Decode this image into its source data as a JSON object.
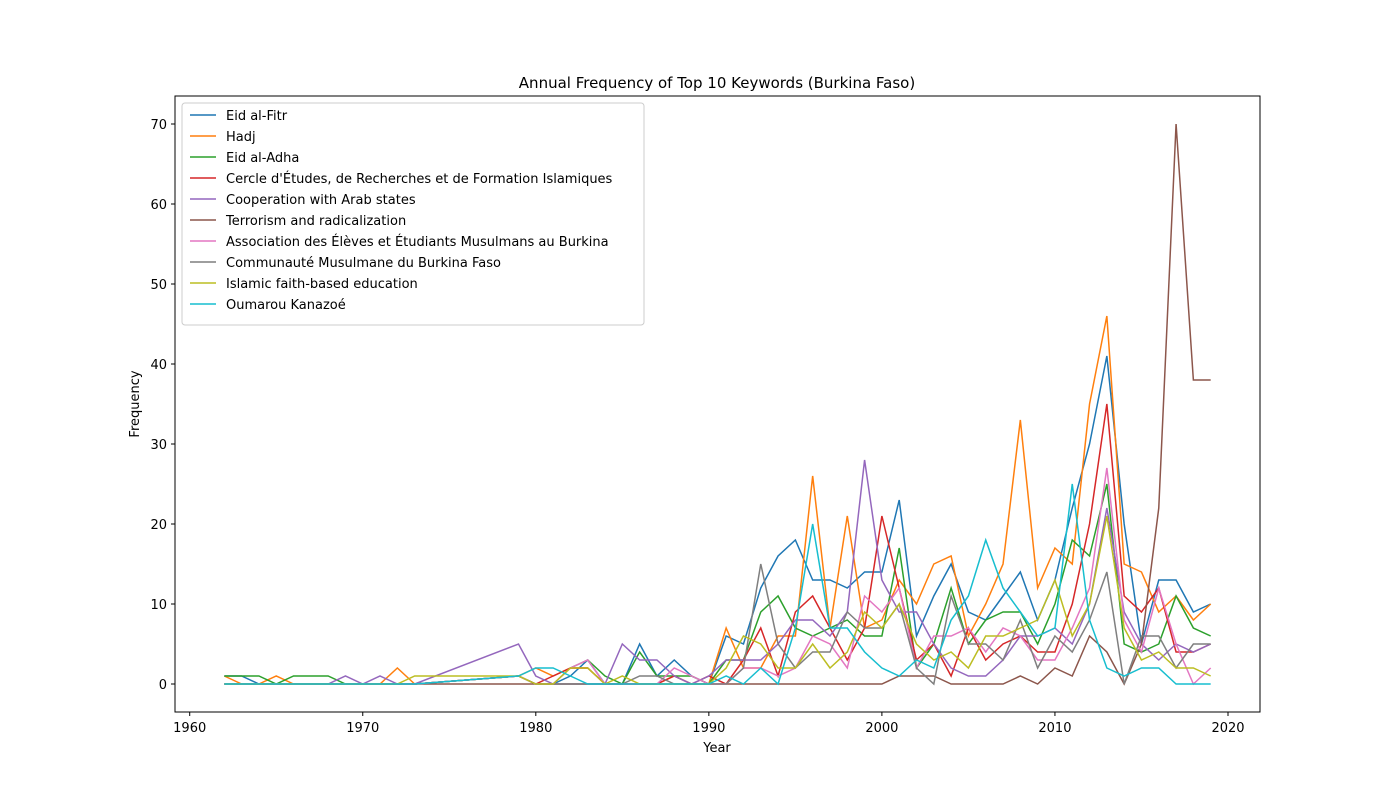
{
  "chart_data": {
    "type": "line",
    "title": "Annual Frequency of Top 10 Keywords (Burkina Faso)",
    "x_label": "Year",
    "y_label": "Frequency",
    "x": [
      1962,
      1963,
      1964,
      1965,
      1966,
      1967,
      1968,
      1969,
      1970,
      1971,
      1972,
      1973,
      1979,
      1980,
      1981,
      1982,
      1983,
      1984,
      1985,
      1986,
      1987,
      1988,
      1989,
      1990,
      1991,
      1992,
      1993,
      1994,
      1995,
      1996,
      1997,
      1998,
      1999,
      2000,
      2001,
      2002,
      2003,
      2004,
      2005,
      2006,
      2007,
      2008,
      2009,
      2010,
      2011,
      2012,
      2013,
      2014,
      2015,
      2016,
      2017,
      2018,
      2019
    ],
    "xlim": [
      1959.15,
      2021.85
    ],
    "xticks": [
      1960,
      1970,
      1980,
      1990,
      2000,
      2010,
      2020
    ],
    "ylim": [
      -3.5,
      73.5
    ],
    "yticks": [
      0,
      10,
      20,
      30,
      40,
      50,
      60,
      70
    ],
    "legend": "upper left",
    "series": [
      {
        "name": "Eid al-Fitr",
        "color": "#1f77b4",
        "values": [
          1,
          1,
          0,
          0,
          0,
          0,
          0,
          0,
          0,
          0,
          0,
          0,
          1,
          0,
          0,
          1,
          3,
          0,
          0,
          5,
          1,
          3,
          1,
          0,
          6,
          5,
          12,
          16,
          18,
          13,
          13,
          12,
          14,
          14,
          23,
          6,
          11,
          15,
          9,
          8,
          11,
          14,
          8,
          13,
          22,
          30,
          41,
          20,
          5,
          13,
          13,
          9,
          10
        ]
      },
      {
        "name": "Hadj",
        "color": "#ff7f0e",
        "values": [
          1,
          0,
          0,
          1,
          0,
          0,
          0,
          0,
          0,
          0,
          2,
          0,
          1,
          2,
          1,
          2,
          2,
          0,
          0,
          0,
          0,
          1,
          0,
          0,
          7,
          2,
          2,
          6,
          6,
          26,
          7,
          21,
          7,
          8,
          13,
          10,
          15,
          16,
          6,
          10,
          15,
          33,
          12,
          17,
          15,
          35,
          46,
          15,
          14,
          9,
          11,
          8,
          10
        ]
      },
      {
        "name": "Eid al-Adha",
        "color": "#2ca02c",
        "values": [
          1,
          1,
          1,
          0,
          1,
          1,
          1,
          0,
          0,
          0,
          0,
          0,
          1,
          0,
          0,
          2,
          3,
          1,
          0,
          4,
          1,
          1,
          1,
          0,
          3,
          3,
          9,
          11,
          7,
          6,
          7,
          8,
          6,
          6,
          17,
          2,
          5,
          12,
          5,
          8,
          9,
          9,
          5,
          10,
          18,
          16,
          25,
          5,
          4,
          5,
          11,
          7,
          6
        ]
      },
      {
        "name": "Cercle d'Études, de Recherches et de Formation Islamiques",
        "color": "#d62728",
        "values": [
          0,
          0,
          0,
          0,
          0,
          0,
          0,
          0,
          0,
          0,
          0,
          0,
          1,
          0,
          1,
          2,
          2,
          0,
          0,
          0,
          0,
          1,
          0,
          1,
          0,
          3,
          7,
          1,
          9,
          11,
          7,
          3,
          7,
          21,
          12,
          3,
          5,
          1,
          7,
          3,
          5,
          6,
          4,
          4,
          10,
          20,
          35,
          11,
          9,
          12,
          4,
          4,
          5
        ]
      },
      {
        "name": "Cooperation with Arab states",
        "color": "#9467bd",
        "values": [
          0,
          0,
          0,
          0,
          0,
          0,
          0,
          1,
          0,
          1,
          0,
          0,
          5,
          1,
          0,
          0,
          0,
          0,
          5,
          3,
          3,
          1,
          0,
          1,
          3,
          3,
          3,
          5,
          8,
          8,
          6,
          9,
          28,
          13,
          9,
          9,
          5,
          2,
          1,
          1,
          3,
          6,
          6,
          7,
          5,
          10,
          22,
          9,
          5,
          3,
          5,
          4,
          5
        ]
      },
      {
        "name": "Terrorism and radicalization",
        "color": "#8c564b",
        "values": [
          0,
          0,
          0,
          0,
          0,
          0,
          0,
          0,
          0,
          0,
          0,
          0,
          0,
          0,
          0,
          0,
          0,
          0,
          0,
          0,
          0,
          0,
          0,
          0,
          0,
          0,
          0,
          0,
          0,
          0,
          0,
          0,
          0,
          0,
          1,
          1,
          1,
          0,
          0,
          0,
          0,
          1,
          0,
          2,
          1,
          6,
          4,
          0,
          5,
          22,
          70,
          38,
          38
        ]
      },
      {
        "name": "Association des Élèves et Étudiants Musulmans au Burkina",
        "color": "#e377c2",
        "values": [
          0,
          0,
          0,
          0,
          0,
          0,
          0,
          0,
          0,
          0,
          0,
          0,
          1,
          0,
          0,
          2,
          3,
          0,
          0,
          0,
          0,
          2,
          1,
          0,
          0,
          2,
          2,
          1,
          2,
          6,
          5,
          2,
          11,
          9,
          12,
          2,
          6,
          6,
          7,
          4,
          7,
          6,
          3,
          3,
          7,
          12,
          27,
          8,
          4,
          12,
          5,
          0,
          2
        ]
      },
      {
        "name": "Communauté Musulmane du Burkina Faso",
        "color": "#7f7f7f",
        "values": [
          0,
          0,
          0,
          0,
          0,
          0,
          0,
          0,
          0,
          0,
          0,
          0,
          1,
          0,
          0,
          0,
          0,
          0,
          0,
          1,
          1,
          0,
          0,
          0,
          0,
          2,
          15,
          5,
          2,
          4,
          4,
          9,
          7,
          7,
          10,
          2,
          0,
          11,
          5,
          5,
          3,
          8,
          2,
          6,
          4,
          8,
          14,
          0,
          6,
          6,
          2,
          5,
          5
        ]
      },
      {
        "name": "Islamic faith-based education",
        "color": "#bcbd22",
        "values": [
          0,
          0,
          0,
          0,
          0,
          0,
          0,
          0,
          0,
          0,
          0,
          1,
          1,
          0,
          0,
          2,
          2,
          0,
          1,
          0,
          0,
          0,
          0,
          0,
          2,
          6,
          5,
          2,
          2,
          5,
          2,
          4,
          9,
          7,
          10,
          5,
          3,
          4,
          2,
          6,
          6,
          7,
          8,
          13,
          6,
          10,
          21,
          7,
          3,
          4,
          2,
          2,
          1
        ]
      },
      {
        "name": "Oumarou Kanazoé",
        "color": "#17becf",
        "values": [
          0,
          0,
          0,
          0,
          0,
          0,
          0,
          0,
          0,
          0,
          0,
          0,
          1,
          2,
          2,
          1,
          0,
          0,
          0,
          0,
          0,
          0,
          0,
          0,
          1,
          0,
          2,
          0,
          7,
          20,
          7,
          7,
          4,
          2,
          1,
          3,
          2,
          8,
          11,
          18,
          12,
          9,
          6,
          7,
          25,
          8,
          2,
          1,
          2,
          2,
          0,
          0,
          0
        ]
      }
    ]
  }
}
